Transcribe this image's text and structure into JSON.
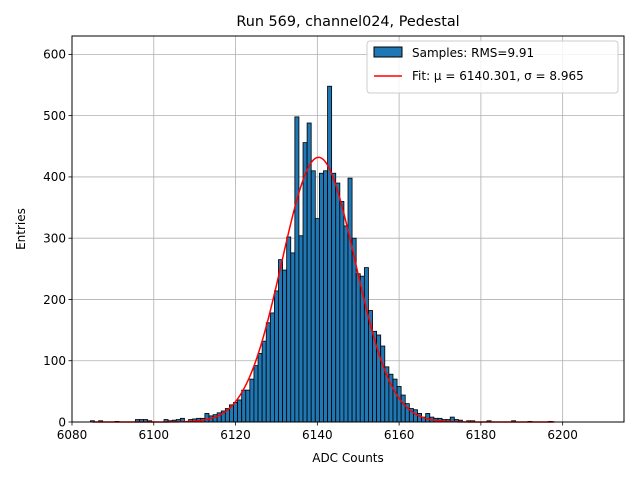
{
  "chart_data": {
    "type": "bar",
    "title": "Run 569, channel024, Pedestal",
    "xlabel": "ADC Counts",
    "ylabel": "Entries",
    "xlim": [
      6080,
      6215
    ],
    "ylim": [
      0,
      630
    ],
    "xticks": [
      6080,
      6100,
      6120,
      6140,
      6160,
      6180,
      6200
    ],
    "yticks": [
      0,
      100,
      200,
      300,
      400,
      500,
      600
    ],
    "grid": true,
    "legend_position": "top-right",
    "bar_color": "#1f77b4",
    "fit_color": "#ff0000",
    "series": [
      {
        "name": "Samples: RMS=9.91",
        "bin_width": 1,
        "bins": [
          [
            6085,
            2
          ],
          [
            6087,
            2
          ],
          [
            6091,
            1
          ],
          [
            6096,
            4
          ],
          [
            6097,
            4
          ],
          [
            6098,
            4
          ],
          [
            6099,
            2
          ],
          [
            6103,
            4
          ],
          [
            6104,
            2
          ],
          [
            6105,
            3
          ],
          [
            6106,
            4
          ],
          [
            6107,
            6
          ],
          [
            6109,
            4
          ],
          [
            6110,
            5
          ],
          [
            6111,
            6
          ],
          [
            6112,
            6
          ],
          [
            6113,
            14
          ],
          [
            6114,
            10
          ],
          [
            6115,
            12
          ],
          [
            6116,
            15
          ],
          [
            6117,
            18
          ],
          [
            6118,
            22
          ],
          [
            6119,
            28
          ],
          [
            6120,
            32
          ],
          [
            6121,
            36
          ],
          [
            6122,
            52
          ],
          [
            6123,
            52
          ],
          [
            6124,
            70
          ],
          [
            6125,
            92
          ],
          [
            6126,
            112
          ],
          [
            6127,
            132
          ],
          [
            6128,
            162
          ],
          [
            6129,
            178
          ],
          [
            6130,
            214
          ],
          [
            6131,
            265
          ],
          [
            6132,
            248
          ],
          [
            6133,
            302
          ],
          [
            6134,
            276
          ],
          [
            6135,
            498
          ],
          [
            6136,
            304
          ],
          [
            6137,
            456
          ],
          [
            6138,
            488
          ],
          [
            6139,
            410
          ],
          [
            6140,
            332
          ],
          [
            6141,
            406
          ],
          [
            6142,
            410
          ],
          [
            6143,
            548
          ],
          [
            6144,
            406
          ],
          [
            6145,
            390
          ],
          [
            6146,
            360
          ],
          [
            6147,
            320
          ],
          [
            6148,
            398
          ],
          [
            6149,
            300
          ],
          [
            6150,
            242
          ],
          [
            6151,
            238
          ],
          [
            6152,
            252
          ],
          [
            6153,
            182
          ],
          [
            6154,
            148
          ],
          [
            6155,
            142
          ],
          [
            6156,
            124
          ],
          [
            6157,
            90
          ],
          [
            6158,
            78
          ],
          [
            6159,
            70
          ],
          [
            6160,
            58
          ],
          [
            6161,
            44
          ],
          [
            6162,
            30
          ],
          [
            6163,
            22
          ],
          [
            6164,
            20
          ],
          [
            6165,
            14
          ],
          [
            6166,
            8
          ],
          [
            6167,
            14
          ],
          [
            6168,
            8
          ],
          [
            6169,
            6
          ],
          [
            6170,
            6
          ],
          [
            6171,
            4
          ],
          [
            6172,
            4
          ],
          [
            6173,
            8
          ],
          [
            6174,
            4
          ],
          [
            6175,
            3
          ],
          [
            6177,
            2
          ],
          [
            6178,
            2
          ],
          [
            6182,
            2
          ],
          [
            6188,
            2
          ],
          [
            6192,
            1
          ],
          [
            6197,
            1
          ]
        ]
      },
      {
        "name": "Fit: μ = 6140.301, σ = 8.965",
        "kind": "gaussian",
        "mu": 6140.301,
        "sigma": 8.965,
        "amplitude": 432,
        "x_range": [
          6085,
          6198
        ]
      }
    ]
  }
}
